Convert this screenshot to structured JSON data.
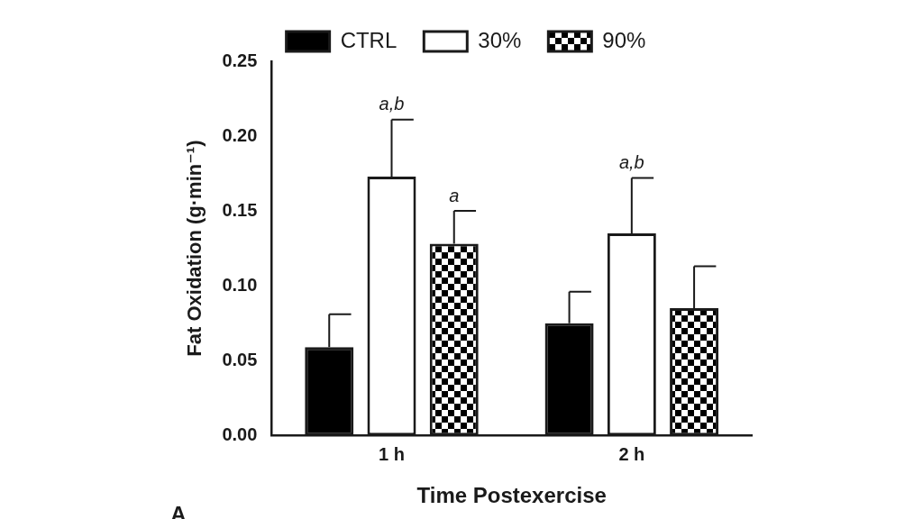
{
  "chart_data": {
    "type": "bar",
    "panel_label": "A",
    "x_label": "Time Postexercise",
    "y_label": "Fat Oxidation (g·min⁻¹)",
    "categories": [
      "1 h",
      "2 h"
    ],
    "series": [
      {
        "name": "CTRL",
        "color": "#000000",
        "values": [
          0.059,
          0.075
        ],
        "errors": [
          0.022,
          0.021
        ]
      },
      {
        "name": "30%",
        "color": "#ffffff",
        "values": [
          0.173,
          0.135
        ],
        "errors": [
          0.038,
          0.037
        ]
      },
      {
        "name": "90%",
        "color": "#000000",
        "values": [
          0.128,
          0.085
        ],
        "errors": [
          0.022,
          0.028
        ]
      }
    ],
    "annotations": [
      {
        "series": "30%",
        "category": "1 h",
        "text": "a,b"
      },
      {
        "series": "90%",
        "category": "1 h",
        "text": "a"
      },
      {
        "series": "30%",
        "category": "2 h",
        "text": "a,b"
      }
    ],
    "ylim": [
      0,
      0.25
    ],
    "yticks": [
      {
        "value": 0,
        "label": "0.00"
      },
      {
        "value": 0.05,
        "label": "0.05"
      },
      {
        "value": 0.1,
        "label": "0.10"
      },
      {
        "value": 0.15,
        "label": "0.15"
      },
      {
        "value": 0.2,
        "label": "0.20"
      },
      {
        "value": 0.25,
        "label": "0.25"
      }
    ],
    "grid": false,
    "legend": "top"
  }
}
